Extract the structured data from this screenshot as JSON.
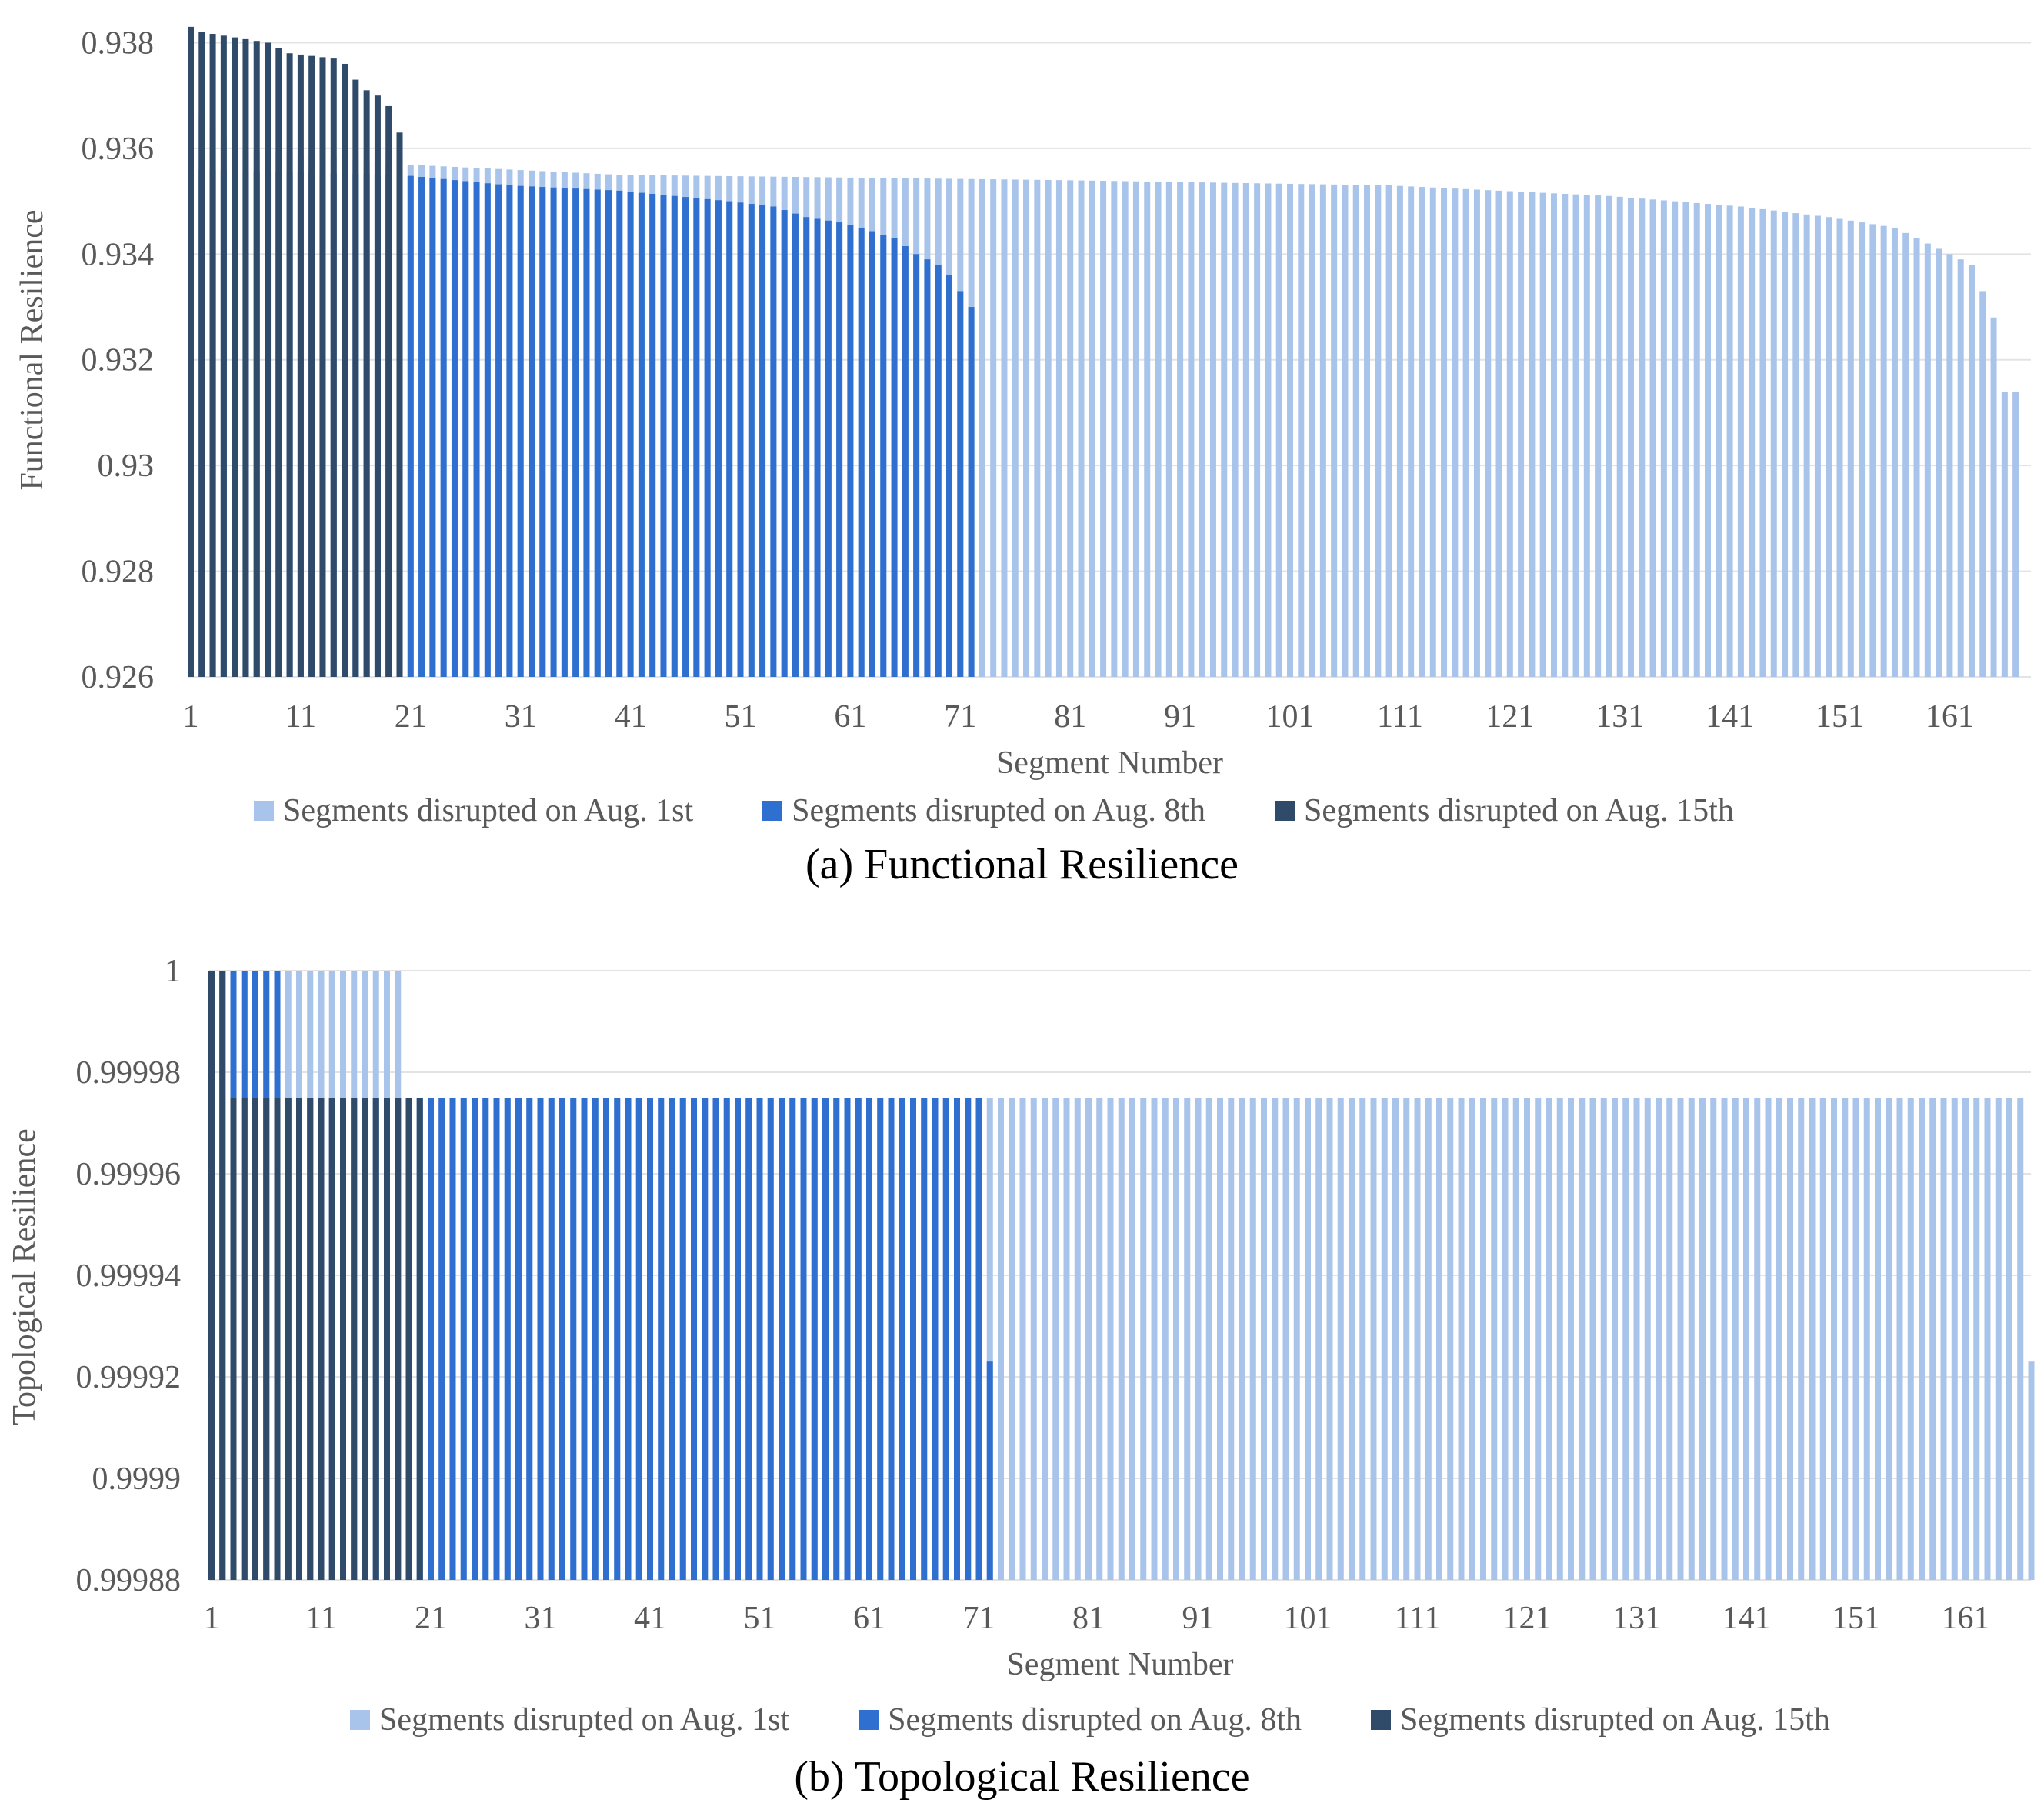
{
  "colors": {
    "aug1": "#a9c4ea",
    "aug8": "#2e6fcf",
    "aug15": "#2f4b69",
    "grid": "#e3e3e3"
  },
  "chart_data": [
    {
      "type": "bar",
      "title": "(a) Functional Resilience",
      "xlabel": "Segment Number",
      "ylabel": "Functional Resilience",
      "ylim": [
        0.926,
        0.9384
      ],
      "yticks": [
        "0.926",
        "0.928",
        "0.93",
        "0.932",
        "0.934",
        "0.936",
        "0.938"
      ],
      "xticks": [
        "1",
        "11",
        "21",
        "31",
        "41",
        "51",
        "61",
        "71",
        "81",
        "91",
        "101",
        "111",
        "121",
        "131",
        "141",
        "151",
        "161"
      ],
      "legend": [
        "Segments disrupted on Aug. 1st",
        "Segments disrupted on Aug. 8th",
        "Segments disrupted on Aug. 15th"
      ],
      "series": [
        {
          "name": "Segments disrupted on Aug. 1st",
          "count": 167,
          "values_note": "sorted descending",
          "anchors": [
            [
              1,
              0.9368
            ],
            [
              5,
              0.936
            ],
            [
              20,
              0.9357
            ],
            [
              40,
              0.9355
            ],
            [
              80,
              0.9354
            ],
            [
              110,
              0.9353
            ],
            [
              130,
              0.9351
            ],
            [
              142,
              0.9349
            ],
            [
              150,
              0.9347
            ],
            [
              156,
              0.9345
            ],
            [
              160,
              0.9341
            ],
            [
              163,
              0.9338
            ],
            [
              164,
              0.9333
            ],
            [
              165,
              0.9328
            ],
            [
              166,
              0.9314
            ],
            [
              167,
              0.9314
            ]
          ]
        },
        {
          "name": "Segments disrupted on Aug. 8th",
          "count": 72,
          "anchors": [
            [
              1,
              0.9356
            ],
            [
              20,
              0.9355
            ],
            [
              30,
              0.9353
            ],
            [
              40,
              0.9352
            ],
            [
              45,
              0.9351
            ],
            [
              50,
              0.935
            ],
            [
              54,
              0.9349
            ],
            [
              57,
              0.9347
            ],
            [
              60,
              0.9346
            ],
            [
              62,
              0.9345
            ],
            [
              65,
              0.9343
            ],
            [
              67,
              0.934
            ],
            [
              69,
              0.9338
            ],
            [
              70,
              0.9336
            ],
            [
              71,
              0.9333
            ],
            [
              72,
              0.933
            ]
          ]
        },
        {
          "name": "Segments disrupted on Aug. 15th",
          "count": 20,
          "anchors": [
            [
              1,
              0.9383
            ],
            [
              2,
              0.9382
            ],
            [
              5,
              0.9381
            ],
            [
              8,
              0.938
            ],
            [
              10,
              0.9378
            ],
            [
              14,
              0.9377
            ],
            [
              15,
              0.9376
            ],
            [
              16,
              0.9373
            ],
            [
              17,
              0.9371
            ],
            [
              18,
              0.937
            ],
            [
              19,
              0.9368
            ],
            [
              20,
              0.9363
            ]
          ]
        }
      ]
    },
    {
      "type": "bar",
      "title": "(b) Topological Resilience",
      "xlabel": "Segment Number",
      "ylabel": "Topological Resilience",
      "ylim": [
        0.99988,
        1.0
      ],
      "yticks": [
        "0.99988",
        "0.9999",
        "0.99992",
        "0.99994",
        "0.99996",
        "0.99998",
        "1"
      ],
      "xticks": [
        "1",
        "11",
        "21",
        "31",
        "41",
        "51",
        "61",
        "71",
        "81",
        "91",
        "101",
        "111",
        "121",
        "131",
        "141",
        "151",
        "161"
      ],
      "legend": [
        "Segments disrupted on Aug. 1st",
        "Segments disrupted on Aug. 8th",
        "Segments disrupted on Aug. 15th"
      ],
      "series": [
        {
          "name": "Segments disrupted on Aug. 1st",
          "count": 167,
          "anchors": [
            [
              1,
              1.0
            ],
            [
              18,
              1.0
            ],
            [
              19,
              0.999975
            ],
            [
              166,
              0.999975
            ],
            [
              167,
              0.999923
            ]
          ]
        },
        {
          "name": "Segments disrupted on Aug. 8th",
          "count": 72,
          "anchors": [
            [
              1,
              1.0
            ],
            [
              7,
              1.0
            ],
            [
              8,
              0.999975
            ],
            [
              71,
              0.999975
            ],
            [
              72,
              0.999923
            ]
          ]
        },
        {
          "name": "Segments disrupted on Aug. 15th",
          "count": 20,
          "anchors": [
            [
              1,
              1.0
            ],
            [
              2,
              1.0
            ],
            [
              3,
              0.999975
            ],
            [
              20,
              0.999975
            ]
          ]
        }
      ]
    }
  ]
}
